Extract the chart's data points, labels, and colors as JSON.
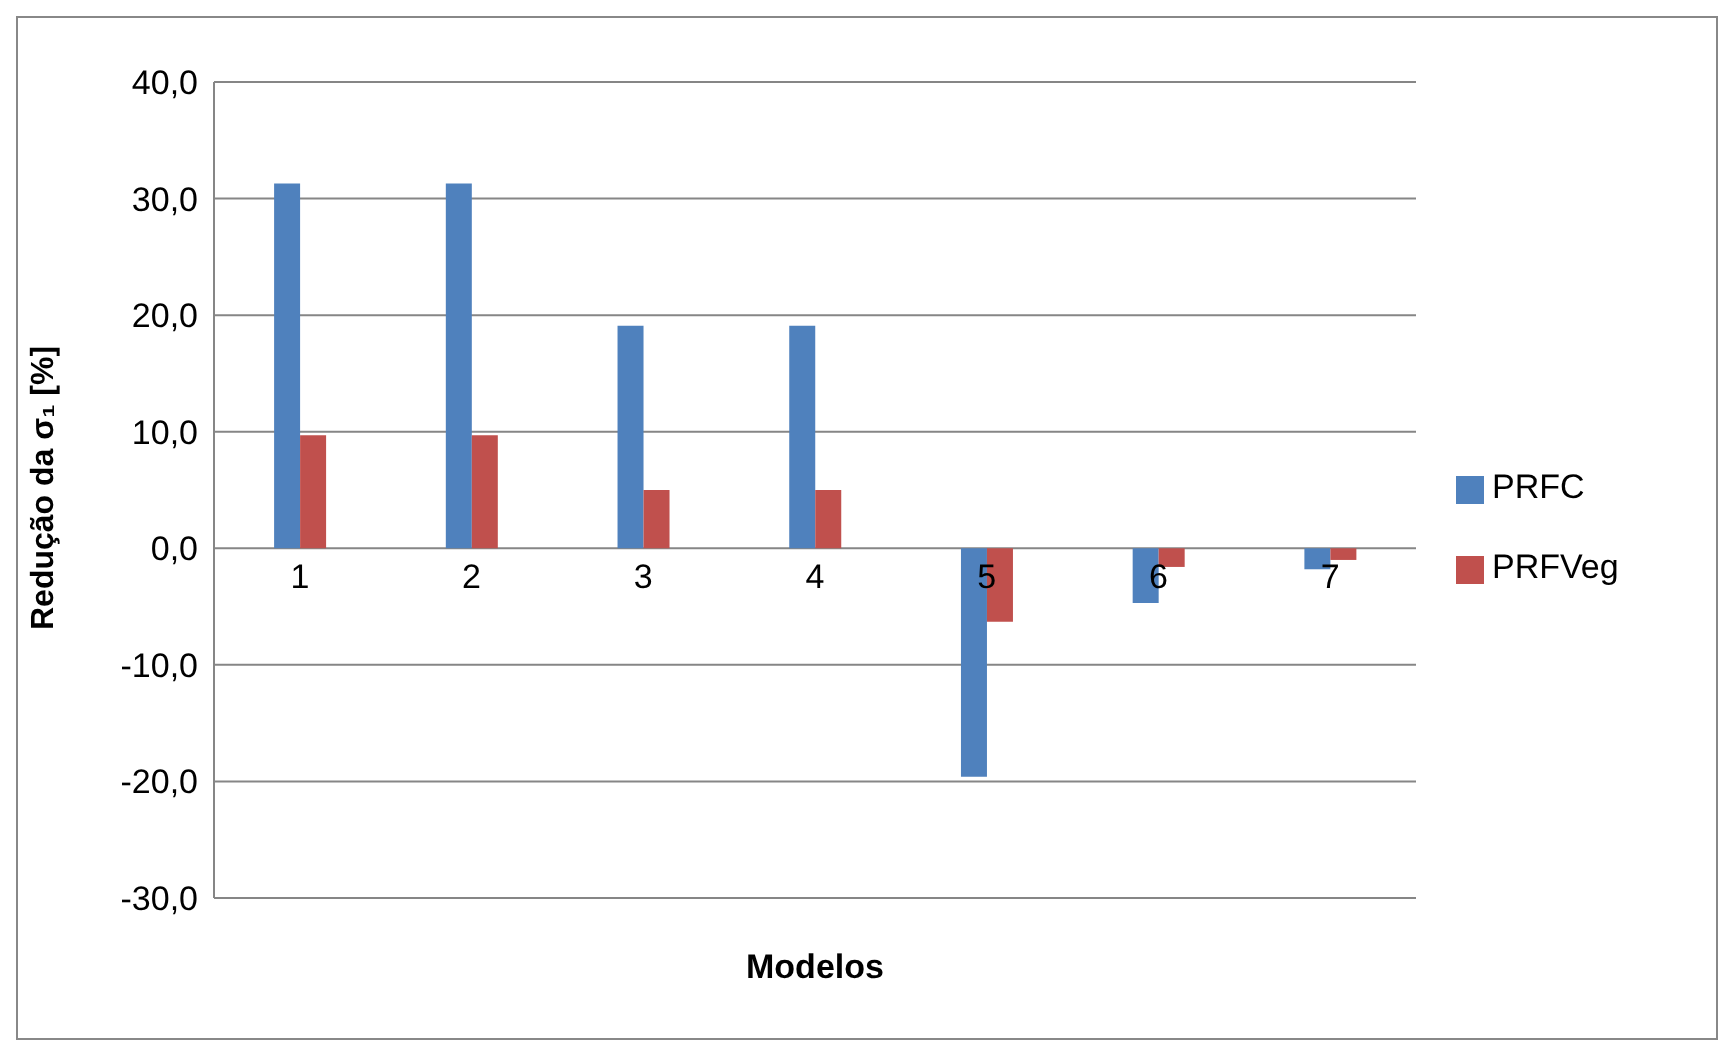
{
  "chart_data": {
    "type": "bar",
    "xlabel": "Modelos",
    "ylabel": "Redução da σ₁ [%]",
    "categories": [
      "1",
      "2",
      "3",
      "4",
      "5",
      "6",
      "7"
    ],
    "series": [
      {
        "name": "PRFC",
        "color": "#4f81bd",
        "values": [
          31.3,
          31.3,
          19.1,
          19.1,
          -19.6,
          -4.7,
          -1.8
        ]
      },
      {
        "name": "PRFVeg",
        "color": "#c0504d",
        "values": [
          9.7,
          9.7,
          5.0,
          5.0,
          -6.3,
          -1.6,
          -1.0
        ]
      }
    ],
    "ylim": [
      -30,
      40
    ],
    "yticks": [
      {
        "value": -30,
        "label": "-30,0"
      },
      {
        "value": -20,
        "label": "-20,0"
      },
      {
        "value": -10,
        "label": "-10,0"
      },
      {
        "value": 0,
        "label": "0,0"
      },
      {
        "value": 10,
        "label": "10,0"
      },
      {
        "value": 20,
        "label": "20,0"
      },
      {
        "value": 30,
        "label": "30,0"
      },
      {
        "value": 40,
        "label": "40,0"
      }
    ],
    "grid": "y",
    "legend": "right"
  }
}
